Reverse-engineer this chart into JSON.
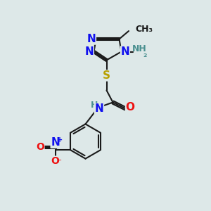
{
  "bg_color": "#dde8e8",
  "bond_color": "#1a1a1a",
  "bond_width": 1.5,
  "dbo": 0.06,
  "atom_colors": {
    "N": "#1010ee",
    "S": "#b8a000",
    "O": "#ee1010",
    "C": "#1a1a1a",
    "H": "#4a9090",
    "NH2_color": "#4a9090"
  },
  "fs_large": 11,
  "fs_med": 10,
  "fs_small": 9
}
